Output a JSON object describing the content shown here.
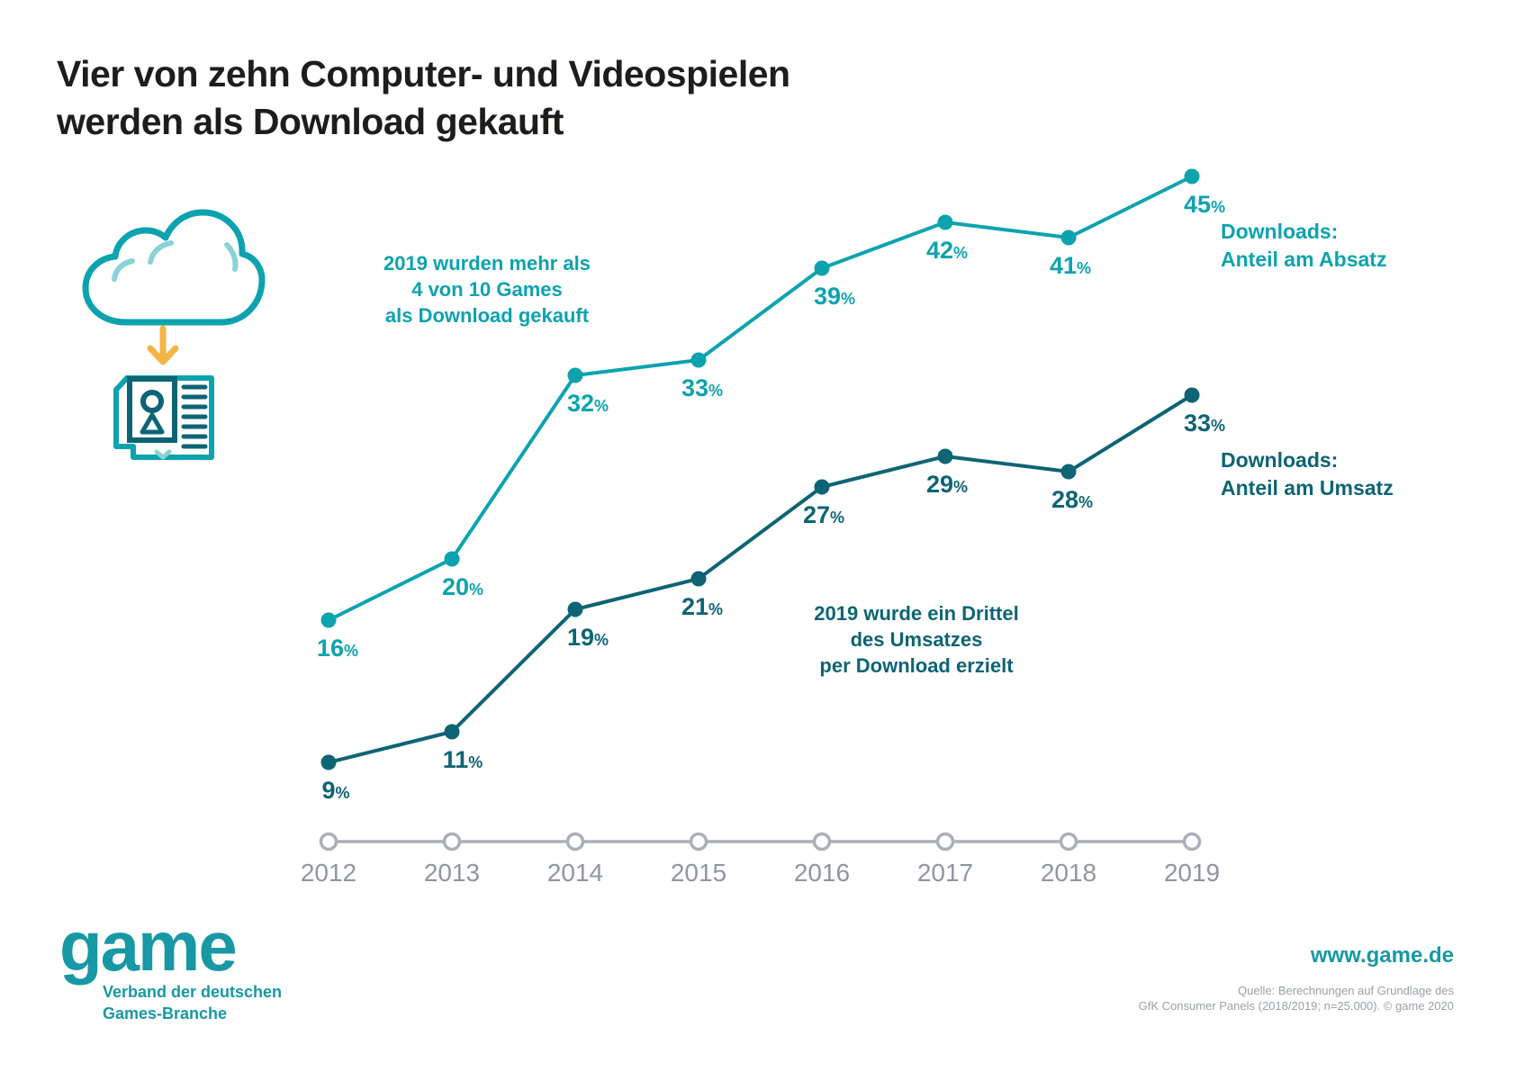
{
  "title": {
    "line1": "Vier von zehn Computer- und Videospielen",
    "line2": "werden als Download gekauft"
  },
  "annotations": {
    "absatz": {
      "line1": "2019 wurden mehr als",
      "line2": "4 von 10 Games",
      "line3": "als Download gekauft"
    },
    "umsatz": {
      "line1": "2019 wurde ein Drittel",
      "line2": "des Umsatzes",
      "line3": "per Download erzielt"
    }
  },
  "legends": {
    "absatz": {
      "line1": "Downloads:",
      "line2": "Anteil am Absatz"
    },
    "umsatz": {
      "line1": "Downloads:",
      "line2": "Anteil am Umsatz"
    }
  },
  "chart_data": {
    "type": "line",
    "categories": [
      "2012",
      "2013",
      "2014",
      "2015",
      "2016",
      "2017",
      "2018",
      "2019"
    ],
    "series": [
      {
        "name": "Downloads: Anteil am Absatz",
        "values": [
          16,
          20,
          32,
          33,
          39,
          42,
          41,
          45
        ],
        "color": "#0ca3ae"
      },
      {
        "name": "Downloads: Anteil am Umsatz",
        "values": [
          9,
          11,
          19,
          21,
          27,
          29,
          28,
          33
        ],
        "color": "#0d6474"
      }
    ],
    "unit": "%",
    "ylim": [
      0,
      50
    ],
    "grid": false,
    "legend_position": "right",
    "xlabel": "",
    "ylabel": ""
  },
  "footer": {
    "logo_text": "game",
    "logo_tagline_line1": "Verband der deutschen",
    "logo_tagline_line2": "Games-Branche",
    "website": "www.game.de",
    "source_line1": "Quelle: Berechnungen auf Grundlage des",
    "source_line2": "GfK Consumer Panels (2018/2019; n=25.000). © game 2020"
  },
  "colors": {
    "absatz_teal": "#0ca3ae",
    "umsatz_teal": "#0d6474",
    "logo_teal": "#1798a4",
    "accent_yellow": "#f6b445",
    "accent_light_teal": "#8ad2d8",
    "axis_gray": "#abafb7",
    "year_label_gray": "#9095a0",
    "source_gray": "#9aa0a8",
    "title_black": "#1d1d1b"
  }
}
